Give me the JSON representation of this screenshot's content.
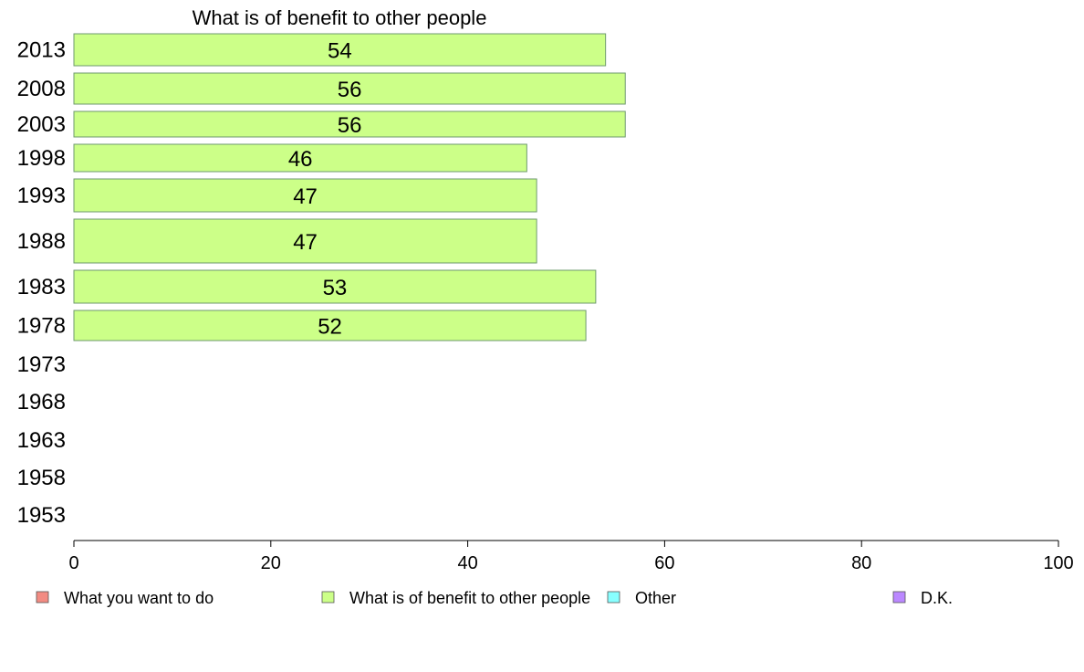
{
  "chart_data": {
    "type": "bar",
    "orientation": "horizontal",
    "title": "What is of benefit to other people",
    "categories": [
      "2013",
      "2008",
      "2003",
      "1998",
      "1993",
      "1988",
      "1983",
      "1978",
      "1973",
      "1968",
      "1963",
      "1958",
      "1953"
    ],
    "series": [
      {
        "name": "What is of benefit to other people",
        "color": "#ccff88",
        "values": [
          54,
          56,
          56,
          46,
          47,
          47,
          53,
          52,
          null,
          null,
          null,
          null,
          null
        ]
      }
    ],
    "xlim": [
      0,
      100
    ],
    "x_ticks": [
      0,
      20,
      40,
      60,
      80,
      100
    ],
    "grid": false,
    "legend": {
      "position": "bottom",
      "entries": [
        {
          "label": "What you want to do",
          "color": "#f28b82"
        },
        {
          "label": "What is of benefit to other people",
          "color": "#ccff88"
        },
        {
          "label": "Other",
          "color": "#88ffff"
        },
        {
          "label": "D.K.",
          "color": "#bb88ff"
        }
      ]
    }
  }
}
